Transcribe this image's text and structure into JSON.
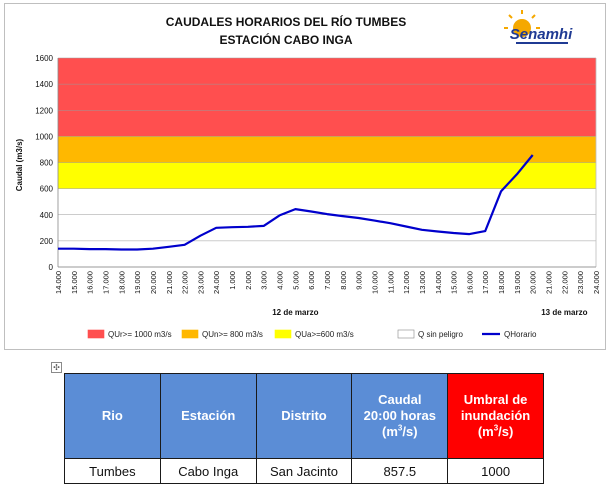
{
  "chart_data": {
    "type": "line",
    "title": "CAUDALES HORARIOS DEL RÍO TUMBES",
    "subtitle": "ESTACIÓN CABO INGA",
    "logo_text": "Senamhi",
    "ylabel": "Caudal (m3/s)",
    "ylim": [
      0,
      1600
    ],
    "yticks": [
      "0",
      "200",
      "400",
      "600",
      "800",
      "1000",
      "1200",
      "1400",
      "1600"
    ],
    "x_ticks": [
      "14.000",
      "15.000",
      "16.000",
      "17.000",
      "18.000",
      "19.000",
      "20.000",
      "21.000",
      "22.000",
      "23.000",
      "24.000",
      "1.000",
      "2.000",
      "3.000",
      "4.000",
      "5.000",
      "6.000",
      "7.000",
      "8.000",
      "9.000",
      "10.000",
      "11.000",
      "12.000",
      "13.000",
      "14.000",
      "15.000",
      "16.000",
      "17.000",
      "18.000",
      "19.000",
      "20.000",
      "21.000",
      "22.000",
      "23.000",
      "24.000"
    ],
    "date_labels": [
      {
        "text": "12 de marzo",
        "tick_index": 15
      },
      {
        "text": "13 de marzo",
        "tick_index": 32
      }
    ],
    "bands": [
      {
        "name": "QUr>= 1000 m3/s",
        "from": 1000,
        "to": 1600,
        "color": "#ff4f4f"
      },
      {
        "name": "QUn>= 800 m3/s",
        "from": 800,
        "to": 1000,
        "color": "#ffb800"
      },
      {
        "name": "QUa>=600 m3/s",
        "from": 600,
        "to": 800,
        "color": "#ffff00"
      },
      {
        "name": "Q sin peligro",
        "from": 0,
        "to": 600,
        "color": "#ffffff"
      }
    ],
    "series": [
      {
        "name": "QHorario",
        "color": "#0000cc",
        "values": [
          140,
          140,
          137,
          137,
          134,
          134,
          140,
          155,
          170,
          240,
          300,
          305,
          308,
          315,
          395,
          443,
          425,
          405,
          390,
          375,
          355,
          335,
          310,
          285,
          272,
          260,
          252,
          275,
          580,
          710,
          857.5
        ]
      }
    ],
    "legend_position": "bottom",
    "grid": true
  },
  "table": {
    "headers": [
      {
        "lines": [
          "Rio"
        ]
      },
      {
        "lines": [
          "Estación"
        ]
      },
      {
        "lines": [
          "Distrito"
        ]
      },
      {
        "lines": [
          "Caudal",
          "20:00 horas"
        ],
        "unit_base": "(m",
        "unit_sup": "3",
        "unit_end": "/s)"
      },
      {
        "lines": [
          "Umbral de inundación"
        ],
        "unit_base": "(m",
        "unit_sup": "3",
        "unit_end": "/s)",
        "red": true
      }
    ],
    "row": [
      "Tumbes",
      "Cabo Inga",
      "San Jacinto",
      "857.5",
      "1000"
    ]
  },
  "anchor_glyph": "✣"
}
